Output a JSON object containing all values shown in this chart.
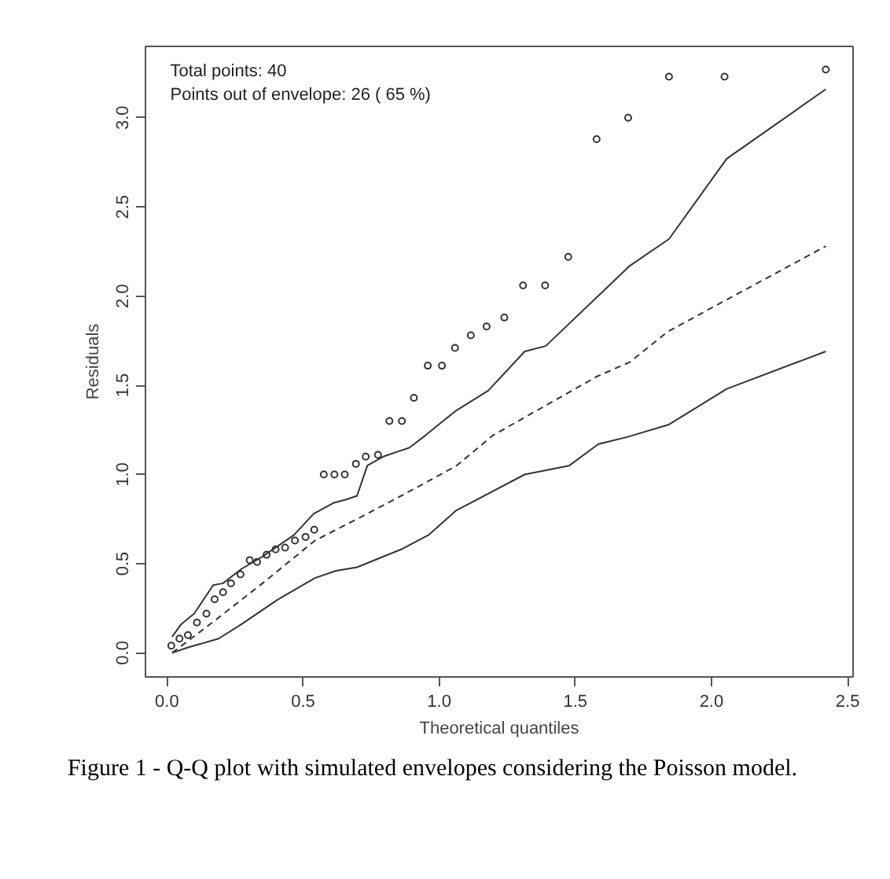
{
  "chart_data": {
    "type": "scatter",
    "title": "Figure 1 - Q-Q plot with simulated envelopes considering the Poisson model.",
    "xlabel": "Theoretical quantiles",
    "ylabel": "Residuals",
    "annotations": [
      "Total points: 40",
      "Points out of envelope: 26 ( 65 %)"
    ],
    "xlim": [
      -0.079,
      2.52
    ],
    "ylim": [
      -0.135,
      3.4
    ],
    "xticks": [
      {
        "value": 0,
        "label": "0.0"
      },
      {
        "value": 0.5,
        "label": "0.5"
      },
      {
        "value": 1,
        "label": "1.0"
      },
      {
        "value": 1.5,
        "label": "1.5"
      },
      {
        "value": 2,
        "label": "2.0"
      },
      {
        "value": 2.5,
        "label": "2.5"
      }
    ],
    "yticks": [
      {
        "value": 0,
        "label": "0.0"
      },
      {
        "value": 0.5,
        "label": "0.5"
      },
      {
        "value": 1,
        "label": "1.0"
      },
      {
        "value": 1.5,
        "label": "1.5"
      },
      {
        "value": 2,
        "label": "2.0"
      },
      {
        "value": 2.5,
        "label": "2.5"
      },
      {
        "value": 3,
        "label": "3.0"
      }
    ],
    "grid": false,
    "series": [
      {
        "marker": "circle",
        "color": "#333333",
        "x": [
          0.016,
          0.046,
          0.077,
          0.11,
          0.145,
          0.175,
          0.206,
          0.235,
          0.27,
          0.304,
          0.331,
          0.366,
          0.399,
          0.434,
          0.47,
          0.509,
          0.541,
          0.576,
          0.615,
          0.653,
          0.694,
          0.73,
          0.775,
          0.817,
          0.863,
          0.907,
          0.958,
          1.01,
          1.058,
          1.116,
          1.174,
          1.239,
          1.308,
          1.389,
          1.474,
          1.578,
          1.694,
          1.844,
          2.048,
          2.42
        ],
        "values": [
          0.04,
          0.08,
          0.1,
          0.17,
          0.22,
          0.3,
          0.34,
          0.39,
          0.44,
          0.52,
          0.51,
          0.55,
          0.58,
          0.59,
          0.63,
          0.65,
          0.69,
          1.0,
          1.0,
          1.0,
          1.06,
          1.1,
          1.11,
          1.3,
          1.3,
          1.43,
          1.61,
          1.61,
          1.71,
          1.78,
          1.83,
          1.88,
          2.06,
          2.06,
          2.22,
          2.88,
          3.0,
          3.23,
          3.23,
          3.27
        ]
      },
      {
        "type": "line",
        "line_style": "solid",
        "color": "#333333",
        "x": [
          0.019,
          0.052,
          0.1,
          0.17,
          0.206,
          0.273,
          0.351,
          0.466,
          0.539,
          0.611,
          0.659,
          0.698,
          0.736,
          0.794,
          0.89,
          0.95,
          1.006,
          1.064,
          1.18,
          1.314,
          1.391,
          1.7,
          1.844,
          2.056,
          2.42
        ],
        "values": [
          0.09,
          0.16,
          0.22,
          0.38,
          0.39,
          0.47,
          0.54,
          0.66,
          0.78,
          0.84,
          0.86,
          0.88,
          1.05,
          1.1,
          1.15,
          1.22,
          1.29,
          1.36,
          1.47,
          1.69,
          1.72,
          2.17,
          2.32,
          2.77,
          3.16
        ]
      },
      {
        "type": "line",
        "line_style": "dashed",
        "color": "#333333",
        "x": [
          0.019,
          0.158,
          0.351,
          0.544,
          0.736,
          0.909,
          1.064,
          1.198,
          1.58,
          1.7,
          1.839,
          2.056,
          2.42
        ],
        "values": [
          0.0,
          0.16,
          0.39,
          0.63,
          0.78,
          0.92,
          1.05,
          1.22,
          1.55,
          1.63,
          1.8,
          1.98,
          2.28
        ]
      },
      {
        "type": "line",
        "line_style": "solid",
        "color": "#333333",
        "x": [
          0.019,
          0.077,
          0.19,
          0.273,
          0.408,
          0.544,
          0.621,
          0.698,
          0.86,
          0.96,
          1.064,
          1.102,
          1.314,
          1.478,
          1.584,
          1.69,
          1.844,
          2.056,
          2.42
        ],
        "values": [
          0.0,
          0.03,
          0.08,
          0.16,
          0.3,
          0.42,
          0.46,
          0.48,
          0.58,
          0.66,
          0.8,
          0.83,
          1.0,
          1.05,
          1.17,
          1.21,
          1.28,
          1.48,
          1.69
        ]
      }
    ]
  }
}
